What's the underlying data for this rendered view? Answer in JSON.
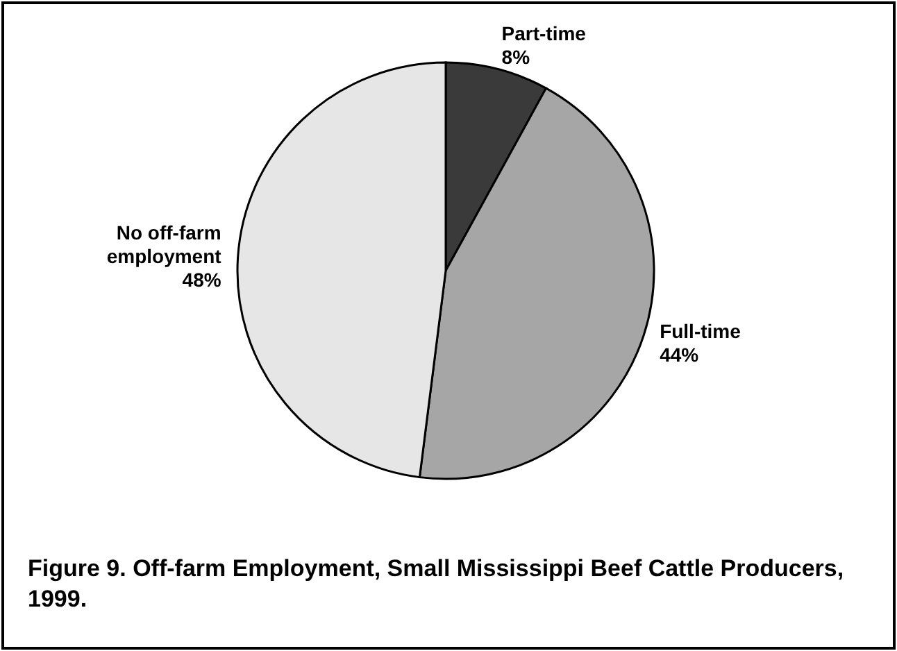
{
  "chart_data": {
    "type": "pie",
    "title": "Figure 9. Off-farm Employment, Small Mississippi Beef Cattle Producers, 1999.",
    "categories": [
      "Part-time",
      "Full-time",
      "No off-farm employment"
    ],
    "values": [
      8,
      44,
      48
    ],
    "value_labels": [
      "8%",
      "44%",
      "48%"
    ],
    "colors": [
      "#3a3a3a",
      "#a6a6a6",
      "#e6e6e6"
    ]
  }
}
